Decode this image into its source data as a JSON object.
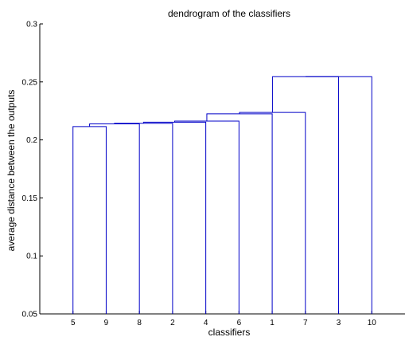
{
  "chart_data": {
    "type": "dendrogram",
    "title": "dendrogram of the classifiers",
    "xlabel": "classifiers",
    "ylabel": "average distance between the outputs",
    "ylim": [
      0.05,
      0.3
    ],
    "yticks": [
      0.05,
      0.1,
      0.15,
      0.2,
      0.25,
      0.3
    ],
    "ytick_labels": [
      "0.05",
      "0.1",
      "0.15",
      "0.2",
      "0.25",
      "0.3"
    ],
    "leaf_order": [
      "5",
      "9",
      "8",
      "2",
      "4",
      "6",
      "1",
      "7",
      "3",
      "10"
    ],
    "grid": false,
    "merges": [
      {
        "left": "5",
        "right": "9",
        "height": 0.2115
      },
      {
        "left": "C1",
        "right": "8",
        "height": 0.2138
      },
      {
        "left": "C2",
        "right": "2",
        "height": 0.2143
      },
      {
        "left": "C3",
        "right": "4",
        "height": 0.2153
      },
      {
        "left": "C4",
        "right": "6",
        "height": 0.2162
      },
      {
        "left": "C5",
        "right": "1",
        "height": 0.2225
      },
      {
        "left": "C6",
        "right": "7",
        "height": 0.2237
      },
      {
        "left": "C7",
        "right": "3",
        "height": 0.2545
      },
      {
        "left": "C8",
        "right": "10",
        "height": 0.2545
      }
    ]
  }
}
